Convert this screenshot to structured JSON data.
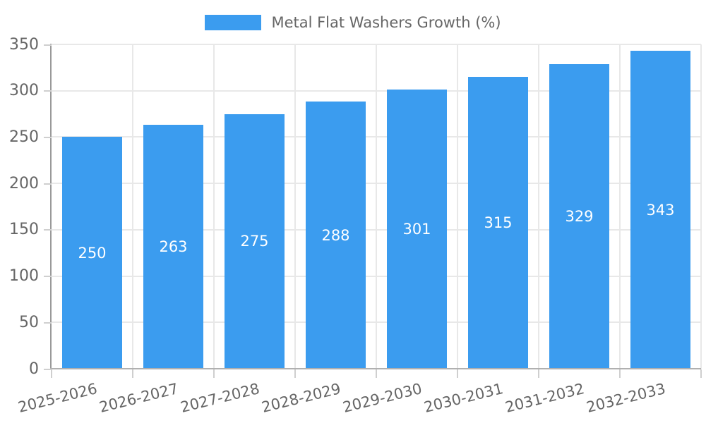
{
  "chart_data": {
    "type": "bar",
    "title": "Metal Flat Washers Growth (%)",
    "legend": {
      "position": "top",
      "label": "Metal Flat Washers Growth (%)"
    },
    "categories": [
      "2025-2026",
      "2026-2027",
      "2027-2028",
      "2028-2029",
      "2029-2030",
      "2030-2031",
      "2031-2032",
      "2032-2033"
    ],
    "values": [
      250,
      263,
      275,
      288,
      301,
      315,
      329,
      343
    ],
    "value_labels": [
      "250",
      "263",
      "275",
      "288",
      "301",
      "315",
      "329",
      "343"
    ],
    "ylim": [
      0,
      350
    ],
    "ytick_step": 50,
    "yticks": [
      "0",
      "50",
      "100",
      "150",
      "200",
      "250",
      "300",
      "350"
    ],
    "grid": true,
    "xlabel": "",
    "ylabel": "",
    "colors": {
      "bar": "#3B9CEF",
      "text": "#666666",
      "value_label": "#FFFFFF",
      "gridline": "#E8E8E8",
      "axis_y": "#999999",
      "axis_x": "#B0B0B0",
      "tick": "#CFCFCF",
      "background": "#FFFFFF"
    }
  }
}
